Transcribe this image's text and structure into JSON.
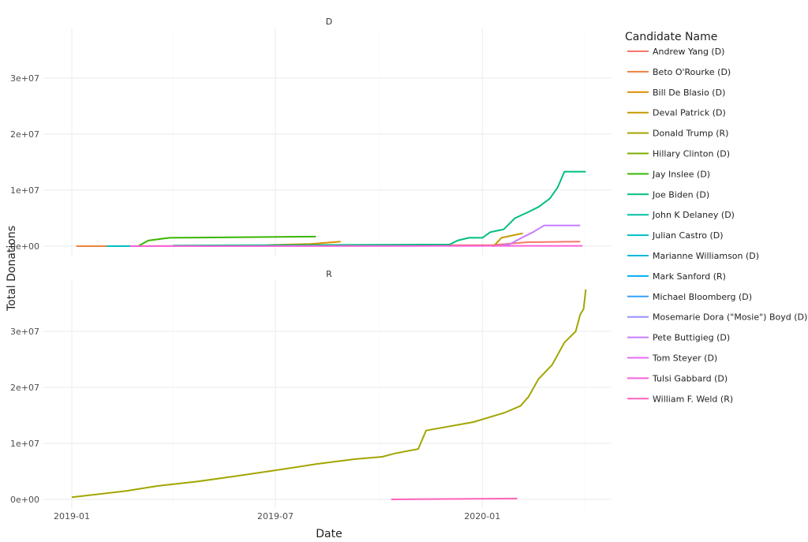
{
  "chart_data": {
    "type": "line",
    "xlabel": "Date",
    "ylabel": "Total Donations",
    "x_ticks": [
      "2019-01",
      "2019-07",
      "2020-01"
    ],
    "y_ticks": [
      "0e+00",
      "1e+07",
      "2e+07",
      "3e+07"
    ],
    "ylim": [
      -1500000,
      39000000
    ],
    "xlim": [
      "2018-12-17",
      "2020-04-25"
    ],
    "grid": true,
    "legend_title": "Candidate Name",
    "legend_placement": "right",
    "facets": [
      "D",
      "R"
    ],
    "series": [
      {
        "name": "Andrew Yang (D)",
        "color": "#F8766D",
        "facet": "D",
        "points": [
          [
            "2019-01-15",
            0
          ],
          [
            "2020-01-10",
            200000
          ],
          [
            "2020-02-10",
            700000
          ],
          [
            "2020-03-28",
            800000
          ]
        ]
      },
      {
        "name": "Beto O'Rourke (D)",
        "color": "#EC823C",
        "facet": "D",
        "points": [
          [
            "2019-01-05",
            0
          ],
          [
            "2019-02-01",
            0
          ]
        ]
      },
      {
        "name": "Bill De Blasio (D)",
        "color": "#DB8E00",
        "facet": "D",
        "points": [
          [
            "2019-06-24",
            200000
          ],
          [
            "2019-08-01",
            400000
          ],
          [
            "2019-08-28",
            800000
          ]
        ]
      },
      {
        "name": "Deval Patrick (D)",
        "color": "#C49A00",
        "facet": "D",
        "points": [
          [
            "2020-01-12",
            200000
          ],
          [
            "2020-01-18",
            1500000
          ],
          [
            "2020-02-06",
            2300000
          ]
        ]
      },
      {
        "name": "Donald Trump (R)",
        "color": "#A3A500",
        "facet": "R",
        "points": [
          [
            "2019-01-01",
            400000
          ],
          [
            "2019-02-18",
            1500000
          ],
          [
            "2019-03-18",
            2400000
          ],
          [
            "2019-04-23",
            3200000
          ],
          [
            "2019-05-28",
            4200000
          ],
          [
            "2019-07-01",
            5200000
          ],
          [
            "2019-08-06",
            6300000
          ],
          [
            "2019-09-10",
            7200000
          ],
          [
            "2019-10-04",
            7600000
          ],
          [
            "2019-10-15",
            8200000
          ],
          [
            "2019-11-05",
            9000000
          ],
          [
            "2019-11-12",
            12300000
          ],
          [
            "2019-12-24",
            13800000
          ],
          [
            "2020-01-21",
            15500000
          ],
          [
            "2020-02-04",
            16700000
          ],
          [
            "2020-02-11",
            18300000
          ],
          [
            "2020-02-20",
            21500000
          ],
          [
            "2020-03-03",
            24000000
          ],
          [
            "2020-03-14",
            28000000
          ],
          [
            "2020-03-24",
            30000000
          ],
          [
            "2020-03-28",
            33000000
          ],
          [
            "2020-03-31",
            34000000
          ],
          [
            "2020-04-02",
            37500000
          ]
        ]
      },
      {
        "name": "Hillary Clinton (D)",
        "color": "#7CAE00",
        "facet": "D",
        "points": []
      },
      {
        "name": "Jay Inslee (D)",
        "color": "#39B600",
        "facet": "D",
        "points": [
          [
            "2019-03-01",
            0
          ],
          [
            "2019-03-10",
            1000000
          ],
          [
            "2019-03-29",
            1500000
          ],
          [
            "2019-08-06",
            1700000
          ]
        ]
      },
      {
        "name": "Joe Biden (D)",
        "color": "#00BF7D",
        "facet": "D",
        "points": [
          [
            "2019-04-01",
            100000
          ],
          [
            "2019-12-03",
            300000
          ],
          [
            "2019-12-10",
            1000000
          ],
          [
            "2019-12-20",
            1500000
          ],
          [
            "2020-01-01",
            1500000
          ],
          [
            "2020-01-08",
            2500000
          ],
          [
            "2020-01-20",
            3000000
          ],
          [
            "2020-01-30",
            5000000
          ],
          [
            "2020-02-10",
            6000000
          ],
          [
            "2020-02-20",
            7000000
          ],
          [
            "2020-03-01",
            8500000
          ],
          [
            "2020-03-08",
            10500000
          ],
          [
            "2020-03-14",
            13300000
          ],
          [
            "2020-04-02",
            13300000
          ]
        ]
      },
      {
        "name": "John K Delaney (D)",
        "color": "#00C1A3",
        "facet": "D",
        "points": []
      },
      {
        "name": "Julian Castro (D)",
        "color": "#00BFC4",
        "facet": "D",
        "points": [
          [
            "2019-02-01",
            0
          ],
          [
            "2019-02-22",
            0
          ]
        ]
      },
      {
        "name": "Marianne Williamson (D)",
        "color": "#00BAE0",
        "facet": "D",
        "points": []
      },
      {
        "name": "Mark Sanford (R)",
        "color": "#00B0F6",
        "facet": "R",
        "points": []
      },
      {
        "name": "Michael Bloomberg (D)",
        "color": "#35A2FF",
        "facet": "D",
        "points": []
      },
      {
        "name": "Mosemarie Dora (\"Mosie\") Boyd (D)",
        "color": "#9590FF",
        "facet": "D",
        "points": []
      },
      {
        "name": "Pete Buttigieg (D)",
        "color": "#C77CFF",
        "facet": "D",
        "points": [
          [
            "2020-01-10",
            0
          ],
          [
            "2020-01-25",
            300000
          ],
          [
            "2020-02-05",
            1500000
          ],
          [
            "2020-02-15",
            2500000
          ],
          [
            "2020-02-25",
            3700000
          ],
          [
            "2020-03-28",
            3700000
          ]
        ]
      },
      {
        "name": "Tom Steyer (D)",
        "color": "#E76BF3",
        "facet": "D",
        "points": []
      },
      {
        "name": "Tulsi Gabbard (D)",
        "color": "#FA62DB",
        "facet": "D",
        "points": [
          [
            "2019-02-22",
            0
          ],
          [
            "2020-03-30",
            50000
          ]
        ]
      },
      {
        "name": "William F. Weld (R)",
        "color": "#FF62BC",
        "facet": "R",
        "points": [
          [
            "2019-10-12",
            0
          ],
          [
            "2020-02-01",
            150000
          ]
        ]
      }
    ]
  }
}
